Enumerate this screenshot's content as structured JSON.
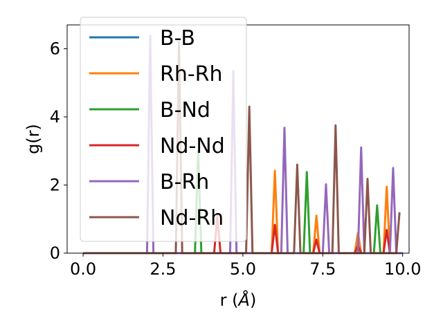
{
  "chart_data": {
    "type": "line",
    "xlabel": "r (",
    "xlabel_unit": "Å",
    "xlabel_close": ")",
    "ylabel": "g(r)",
    "xlim": [
      -0.5,
      10.2
    ],
    "ylim": [
      0,
      6.7
    ],
    "xticks": [
      0.0,
      2.5,
      5.0,
      7.5,
      10.0
    ],
    "xtick_labels": [
      "0.0",
      "2.5",
      "5.0",
      "7.5",
      "10.0"
    ],
    "yticks": [
      0,
      2,
      4,
      6
    ],
    "ytick_labels": [
      "0",
      "2",
      "4",
      "6"
    ],
    "grid": false,
    "legend_position": "upper-left",
    "series": [
      {
        "name": "B-B",
        "color": "#1f77b4",
        "x": [
          0.0,
          10.0
        ],
        "y": [
          0,
          0
        ]
      },
      {
        "name": "Rh-Rh",
        "color": "#ff7f0e",
        "x": [
          0.0,
          5.9,
          6.0,
          6.1,
          7.2,
          7.3,
          7.4,
          8.5,
          8.6,
          8.7,
          9.4,
          9.5,
          9.6,
          10.0
        ],
        "y": [
          0,
          0,
          2.42,
          0,
          0,
          1.1,
          0,
          0,
          0.6,
          0,
          0,
          1.95,
          0,
          0
        ]
      },
      {
        "name": "B-Nd",
        "color": "#2ca02c",
        "x": [
          0.0,
          3.5,
          3.6,
          3.7,
          6.9,
          7.0,
          7.1,
          9.1,
          9.2,
          9.3,
          10.0
        ],
        "y": [
          0,
          0,
          3.0,
          0,
          0,
          2.38,
          0,
          0,
          1.4,
          0,
          0
        ]
      },
      {
        "name": "Nd-Nd",
        "color": "#d62728",
        "x": [
          0.0,
          4.1,
          4.2,
          4.3,
          5.9,
          6.0,
          6.1,
          7.2,
          7.3,
          7.4,
          8.5,
          8.6,
          8.7,
          9.4,
          9.5,
          9.6,
          10.0
        ],
        "y": [
          0,
          0,
          1.1,
          0,
          0,
          0.83,
          0,
          0,
          0.4,
          0,
          0,
          0.22,
          0,
          0,
          0.68,
          0,
          0
        ]
      },
      {
        "name": "B-Rh",
        "color": "#9467bd",
        "x": [
          0.0,
          2.0,
          2.1,
          2.2,
          4.6,
          4.7,
          4.8,
          6.2,
          6.3,
          6.4,
          7.5,
          7.6,
          7.7,
          8.6,
          8.7,
          8.8,
          9.6,
          9.7,
          9.8,
          10.0
        ],
        "y": [
          0,
          0,
          6.38,
          0,
          0,
          5.35,
          0,
          0,
          3.68,
          0,
          0,
          2.02,
          0,
          0,
          3.1,
          0,
          0,
          2.5,
          0,
          0
        ]
      },
      {
        "name": "Nd-Rh",
        "color": "#8c564b",
        "x": [
          0.0,
          2.9,
          3.0,
          3.1,
          5.1,
          5.2,
          5.3,
          6.6,
          6.7,
          6.8,
          7.8,
          7.9,
          8.0,
          8.8,
          8.9,
          9.0,
          9.8,
          9.9
        ],
        "y": [
          0,
          0,
          6.2,
          0,
          0,
          4.3,
          0,
          0,
          2.6,
          0,
          0,
          3.75,
          0,
          0,
          2.18,
          0,
          0,
          1.2
        ]
      }
    ]
  }
}
